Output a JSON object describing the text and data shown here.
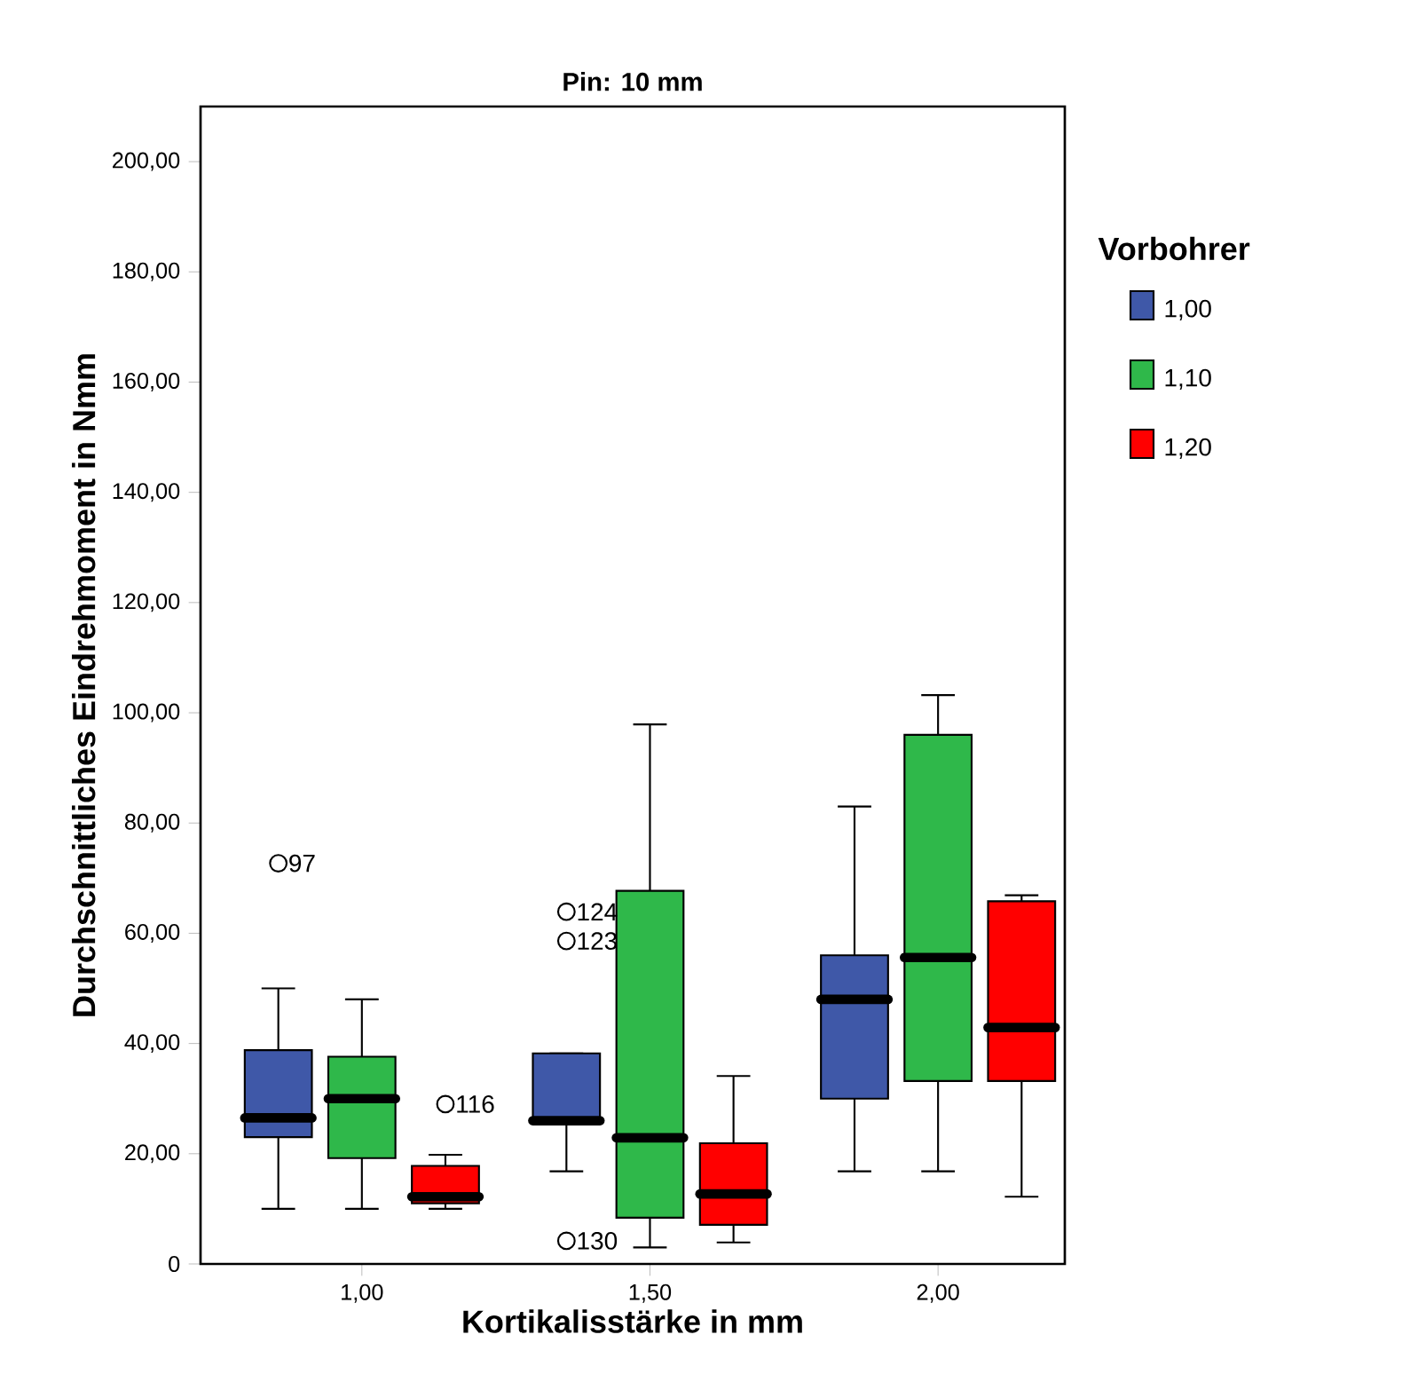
{
  "chart_data": {
    "type": "box",
    "title": "Pin: 10 mm",
    "xlabel": "Kortikalisstärke in mm",
    "ylabel": "Durchschnittliches Eindrehmoment in Nmm",
    "legend_title": "Vorbohrer",
    "legend": "right",
    "categories": [
      "1,00",
      "1,50",
      "2,00"
    ],
    "ylim": [
      0,
      210
    ],
    "yticks": [
      {
        "value": 0,
        "label": "0"
      },
      {
        "value": 20,
        "label": "20,00"
      },
      {
        "value": 40,
        "label": "40,00"
      },
      {
        "value": 60,
        "label": "60,00"
      },
      {
        "value": 80,
        "label": "80,00"
      },
      {
        "value": 100,
        "label": "100,00"
      },
      {
        "value": 120,
        "label": "120,00"
      },
      {
        "value": 140,
        "label": "140,00"
      },
      {
        "value": 160,
        "label": "160,00"
      },
      {
        "value": 180,
        "label": "180,00"
      },
      {
        "value": 200,
        "label": "200,00"
      }
    ],
    "series": [
      {
        "name": "1,00",
        "color": "#3f58a8",
        "boxes": [
          {
            "low": 10,
            "q1": 23,
            "median": 26.5,
            "q3": 38.8,
            "high": 50,
            "outliers": [
              72.7
            ]
          },
          {
            "low": 16.8,
            "q1": 25.5,
            "median": 26,
            "q3": 38.2,
            "high": 38.2,
            "outliers": [
              63.9,
              58.6,
              4.2
            ]
          },
          {
            "low": 16.8,
            "q1": 30,
            "median": 48,
            "q3": 56,
            "high": 83
          }
        ]
      },
      {
        "name": "1,10",
        "color": "#2fb84a",
        "boxes": [
          {
            "low": 10,
            "q1": 19.2,
            "median": 30,
            "q3": 37.6,
            "high": 48
          },
          {
            "low": 3,
            "q1": 8.4,
            "median": 22.9,
            "q3": 67.7,
            "high": 97.9
          },
          {
            "low": 16.8,
            "q1": 33.2,
            "median": 55.6,
            "q3": 96,
            "high": 103.2
          }
        ]
      },
      {
        "name": "1,20",
        "color": "#ff0000",
        "boxes": [
          {
            "low": 10,
            "q1": 11,
            "median": 12.2,
            "q3": 17.8,
            "high": 19.8,
            "outliers": [
              29
            ]
          },
          {
            "low": 3.9,
            "q1": 7.1,
            "median": 12.7,
            "q3": 21.9,
            "high": 34.1
          },
          {
            "low": 12.2,
            "q1": 33.2,
            "median": 42.9,
            "q3": 65.8,
            "high": 66.9
          }
        ]
      }
    ],
    "annotations": [
      "97",
      "124",
      "123",
      "130",
      "116"
    ]
  }
}
